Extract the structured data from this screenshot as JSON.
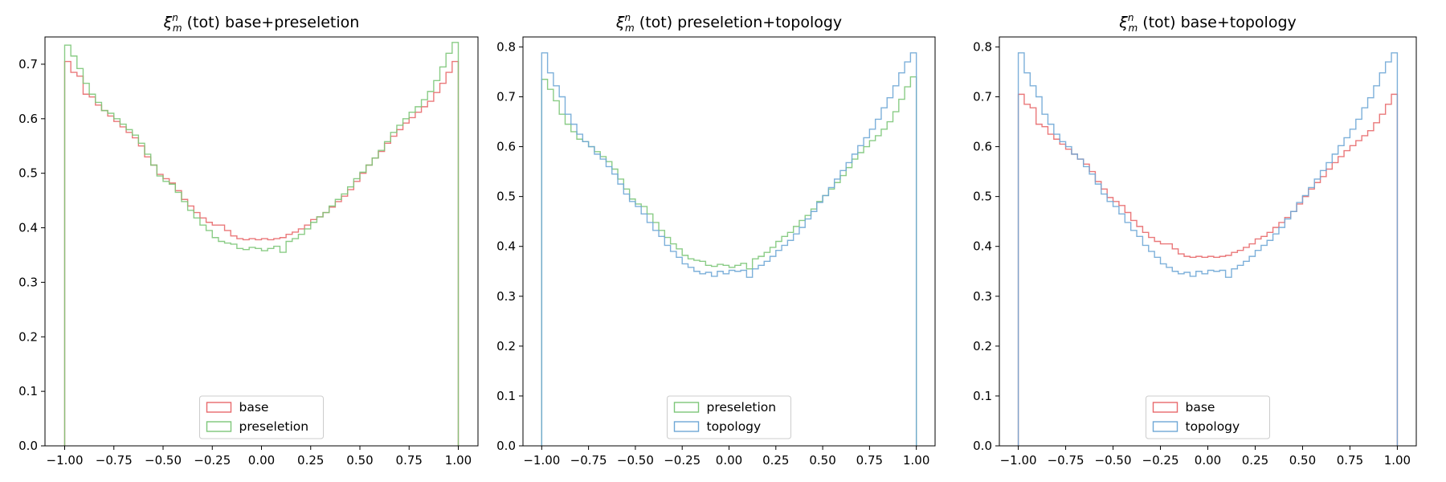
{
  "colors": {
    "base": "#e8696b",
    "preseletion": "#7dc679",
    "topology": "#6fa7d6"
  },
  "chart_data": [
    {
      "type": "histogram",
      "title": "ξ_m^n (tot) base+preseletion",
      "title_parts": {
        "sym": "ξ",
        "sup": "n",
        "sub": "m",
        "rest": " (tot) base+preseletion"
      },
      "xlim": [
        -1.0,
        1.0
      ],
      "ylim": [
        0,
        0.75
      ],
      "xticks": [
        "−1.00",
        "−0.75",
        "−0.50",
        "−0.25",
        "0.00",
        "0.25",
        "0.50",
        "0.75",
        "1.00"
      ],
      "yticks": [
        "0.0",
        "0.1",
        "0.2",
        "0.3",
        "0.4",
        "0.5",
        "0.6",
        "0.7"
      ],
      "legend_position": "bottom-center",
      "series": [
        {
          "name": "base",
          "color_key": "base",
          "values": [
            0.705,
            0.685,
            0.678,
            0.645,
            0.64,
            0.625,
            0.615,
            0.605,
            0.595,
            0.585,
            0.575,
            0.565,
            0.55,
            0.53,
            0.515,
            0.498,
            0.49,
            0.482,
            0.468,
            0.452,
            0.44,
            0.428,
            0.418,
            0.41,
            0.405,
            0.405,
            0.395,
            0.385,
            0.38,
            0.378,
            0.38,
            0.378,
            0.38,
            0.378,
            0.38,
            0.382,
            0.388,
            0.392,
            0.398,
            0.405,
            0.415,
            0.42,
            0.428,
            0.438,
            0.448,
            0.458,
            0.47,
            0.485,
            0.5,
            0.515,
            0.528,
            0.54,
            0.555,
            0.568,
            0.58,
            0.592,
            0.602,
            0.612,
            0.622,
            0.632,
            0.648,
            0.665,
            0.685,
            0.705
          ]
        },
        {
          "name": "preseletion",
          "color_key": "preseletion",
          "values": [
            0.735,
            0.715,
            0.692,
            0.665,
            0.645,
            0.63,
            0.615,
            0.61,
            0.6,
            0.59,
            0.58,
            0.57,
            0.555,
            0.535,
            0.515,
            0.495,
            0.485,
            0.48,
            0.465,
            0.448,
            0.432,
            0.418,
            0.405,
            0.395,
            0.382,
            0.375,
            0.372,
            0.37,
            0.362,
            0.36,
            0.364,
            0.362,
            0.358,
            0.362,
            0.366,
            0.355,
            0.375,
            0.38,
            0.388,
            0.398,
            0.41,
            0.42,
            0.428,
            0.44,
            0.452,
            0.462,
            0.475,
            0.49,
            0.502,
            0.515,
            0.528,
            0.542,
            0.558,
            0.575,
            0.588,
            0.6,
            0.612,
            0.622,
            0.635,
            0.65,
            0.67,
            0.695,
            0.72,
            0.74
          ]
        }
      ]
    },
    {
      "type": "histogram",
      "title": "ξ_m^n (tot) preseletion+topology",
      "title_parts": {
        "sym": "ξ",
        "sup": "n",
        "sub": "m",
        "rest": " (tot) preseletion+topology"
      },
      "xlim": [
        -1.0,
        1.0
      ],
      "ylim": [
        0,
        0.82
      ],
      "xticks": [
        "−1.00",
        "−0.75",
        "−0.50",
        "−0.25",
        "0.00",
        "0.25",
        "0.50",
        "0.75",
        "1.00"
      ],
      "yticks": [
        "0.0",
        "0.1",
        "0.2",
        "0.3",
        "0.4",
        "0.5",
        "0.6",
        "0.7",
        "0.8"
      ],
      "legend_position": "bottom-center",
      "series": [
        {
          "name": "preseletion",
          "color_key": "preseletion",
          "values": [
            0.735,
            0.715,
            0.692,
            0.665,
            0.645,
            0.63,
            0.615,
            0.61,
            0.6,
            0.59,
            0.58,
            0.57,
            0.555,
            0.535,
            0.515,
            0.495,
            0.485,
            0.48,
            0.465,
            0.448,
            0.432,
            0.418,
            0.405,
            0.395,
            0.382,
            0.375,
            0.372,
            0.37,
            0.362,
            0.36,
            0.364,
            0.362,
            0.358,
            0.362,
            0.366,
            0.355,
            0.375,
            0.38,
            0.388,
            0.398,
            0.41,
            0.42,
            0.428,
            0.44,
            0.452,
            0.462,
            0.475,
            0.49,
            0.502,
            0.515,
            0.528,
            0.542,
            0.558,
            0.575,
            0.588,
            0.6,
            0.612,
            0.622,
            0.635,
            0.65,
            0.67,
            0.695,
            0.72,
            0.74
          ]
        },
        {
          "name": "topology",
          "color_key": "topology",
          "values": [
            0.788,
            0.748,
            0.722,
            0.7,
            0.665,
            0.645,
            0.625,
            0.61,
            0.6,
            0.585,
            0.575,
            0.56,
            0.545,
            0.525,
            0.505,
            0.49,
            0.48,
            0.465,
            0.448,
            0.432,
            0.42,
            0.402,
            0.39,
            0.378,
            0.365,
            0.358,
            0.35,
            0.345,
            0.348,
            0.34,
            0.35,
            0.345,
            0.352,
            0.35,
            0.352,
            0.338,
            0.355,
            0.362,
            0.37,
            0.38,
            0.392,
            0.402,
            0.412,
            0.425,
            0.438,
            0.455,
            0.47,
            0.488,
            0.502,
            0.518,
            0.535,
            0.552,
            0.568,
            0.585,
            0.602,
            0.618,
            0.635,
            0.655,
            0.678,
            0.698,
            0.722,
            0.748,
            0.77,
            0.788
          ]
        }
      ]
    },
    {
      "type": "histogram",
      "title": "ξ_m^n (tot) base+topology",
      "title_parts": {
        "sym": "ξ",
        "sup": "n",
        "sub": "m",
        "rest": " (tot) base+topology"
      },
      "xlim": [
        -1.0,
        1.0
      ],
      "ylim": [
        0,
        0.82
      ],
      "xticks": [
        "−1.00",
        "−0.75",
        "−0.50",
        "−0.25",
        "0.00",
        "0.25",
        "0.50",
        "0.75",
        "1.00"
      ],
      "yticks": [
        "0.0",
        "0.1",
        "0.2",
        "0.3",
        "0.4",
        "0.5",
        "0.6",
        "0.7",
        "0.8"
      ],
      "legend_position": "bottom-center",
      "series": [
        {
          "name": "base",
          "color_key": "base",
          "values": [
            0.705,
            0.685,
            0.678,
            0.645,
            0.64,
            0.625,
            0.615,
            0.605,
            0.595,
            0.585,
            0.575,
            0.565,
            0.55,
            0.53,
            0.515,
            0.498,
            0.49,
            0.482,
            0.468,
            0.452,
            0.44,
            0.428,
            0.418,
            0.41,
            0.405,
            0.405,
            0.395,
            0.385,
            0.38,
            0.378,
            0.38,
            0.378,
            0.38,
            0.378,
            0.38,
            0.382,
            0.388,
            0.392,
            0.398,
            0.405,
            0.415,
            0.42,
            0.428,
            0.438,
            0.448,
            0.458,
            0.47,
            0.485,
            0.5,
            0.515,
            0.528,
            0.54,
            0.555,
            0.568,
            0.58,
            0.592,
            0.602,
            0.612,
            0.622,
            0.632,
            0.648,
            0.665,
            0.685,
            0.705
          ]
        },
        {
          "name": "topology",
          "color_key": "topology",
          "values": [
            0.788,
            0.748,
            0.722,
            0.7,
            0.665,
            0.645,
            0.625,
            0.61,
            0.6,
            0.585,
            0.575,
            0.56,
            0.545,
            0.525,
            0.505,
            0.49,
            0.48,
            0.465,
            0.448,
            0.432,
            0.42,
            0.402,
            0.39,
            0.378,
            0.365,
            0.358,
            0.35,
            0.345,
            0.348,
            0.34,
            0.35,
            0.345,
            0.352,
            0.35,
            0.352,
            0.338,
            0.355,
            0.362,
            0.37,
            0.38,
            0.392,
            0.402,
            0.412,
            0.425,
            0.438,
            0.455,
            0.47,
            0.488,
            0.502,
            0.518,
            0.535,
            0.552,
            0.568,
            0.585,
            0.602,
            0.618,
            0.635,
            0.655,
            0.678,
            0.698,
            0.722,
            0.748,
            0.77,
            0.788
          ]
        }
      ]
    }
  ]
}
